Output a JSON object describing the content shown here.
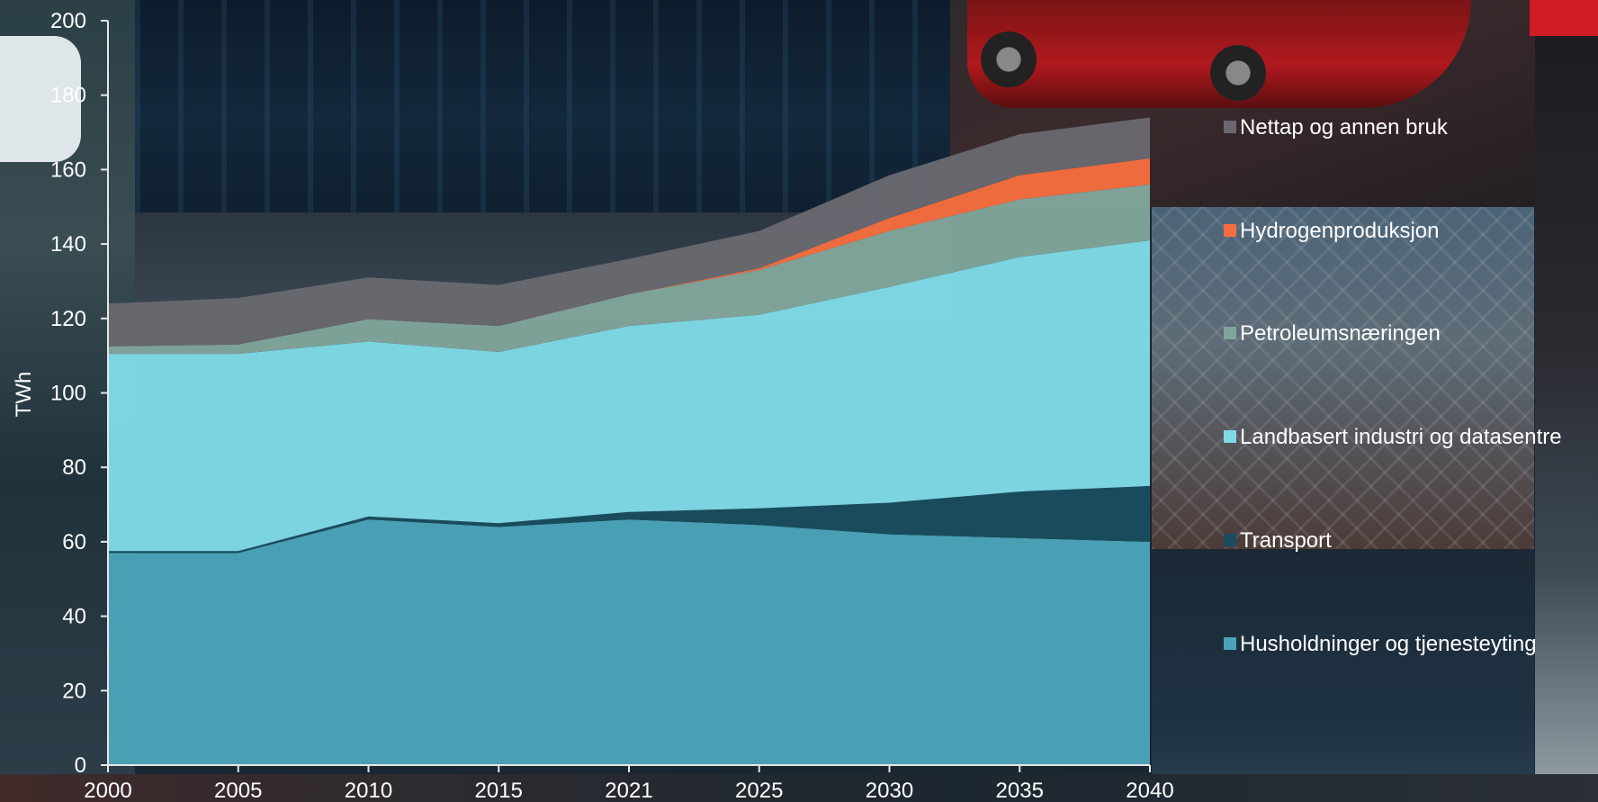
{
  "chart_data": {
    "type": "area",
    "stacked": true,
    "ylabel": "TWh",
    "xlabel": "",
    "ylim": [
      0,
      200
    ],
    "yticks": [
      0,
      20,
      40,
      60,
      80,
      100,
      120,
      140,
      160,
      180,
      200
    ],
    "x": [
      "2000",
      "2005",
      "2010",
      "2015",
      "2021",
      "2025",
      "2030",
      "2035",
      "2040"
    ],
    "grid": false,
    "legend_position": "right",
    "series": [
      {
        "name": "Husholdninger og tjenesteyting",
        "color": "#4ba3b8",
        "values": [
          57,
          57,
          66,
          64,
          66,
          64.5,
          62,
          61,
          60
        ]
      },
      {
        "name": "Transport",
        "color": "#1b4c5e",
        "values": [
          0.5,
          0.5,
          0.8,
          1,
          2,
          4.5,
          8.5,
          12.5,
          15
        ]
      },
      {
        "name": "Landbasert industri og datasentre",
        "color": "#7fdae6",
        "values": [
          53,
          53,
          47,
          46,
          50,
          52,
          58,
          63,
          66
        ]
      },
      {
        "name": "Petroleumsnæringen",
        "color": "#82a59b",
        "values": [
          2,
          2.5,
          6,
          7,
          8.5,
          12,
          15,
          15.5,
          15
        ]
      },
      {
        "name": "Hydrogenproduksjon",
        "color": "#f46d3e",
        "values": [
          0,
          0,
          0,
          0,
          0,
          0.5,
          3.5,
          6.5,
          7
        ]
      },
      {
        "name": "Nettap og annen bruk",
        "color": "#696870",
        "values": [
          11.5,
          12.5,
          11.2,
          11,
          9.5,
          10,
          11.5,
          11,
          11
        ]
      }
    ]
  }
}
